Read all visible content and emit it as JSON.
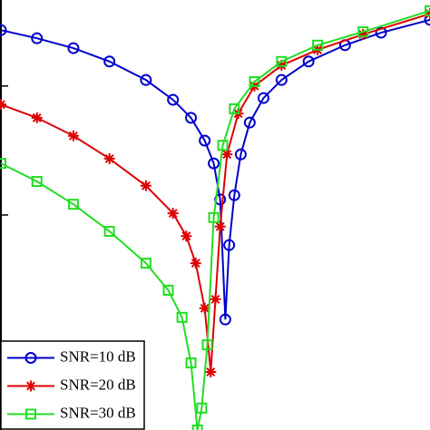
{
  "chart_data": {
    "type": "line",
    "xlim": [
      0,
      100
    ],
    "ylim": [
      0,
      100
    ],
    "yticks": [
      20,
      50,
      80
    ],
    "legend": "lower left",
    "series": [
      {
        "name": "SNR=10 dB",
        "color": "#0000cc",
        "marker": "circle",
        "x": [
          0,
          8.4,
          16.9,
          25.3,
          33.8,
          40.1,
          44.3,
          47.5,
          49.6,
          51.1,
          52.3,
          53.2,
          54.4,
          55.9,
          58.0,
          61.2,
          65.4,
          71.7,
          80.2,
          88.6,
          100
        ],
        "values": [
          93.0,
          91.1,
          88.8,
          85.7,
          81.4,
          76.8,
          72.6,
          67.3,
          62.0,
          53.6,
          25.7,
          43.0,
          54.6,
          64.1,
          71.5,
          77.2,
          81.4,
          85.7,
          89.5,
          92.4,
          95.4
        ]
      },
      {
        "name": "SNR=20 dB",
        "color": "#dd0000",
        "marker": "star",
        "x": [
          0,
          8.4,
          16.9,
          25.3,
          33.8,
          40.1,
          43.2,
          45.4,
          47.5,
          48.9,
          50.0,
          51.1,
          52.7,
          55.3,
          59.1,
          65.4,
          73.8,
          84.4,
          100
        ],
        "values": [
          75.7,
          72.6,
          68.4,
          63.1,
          56.8,
          50.4,
          45.1,
          38.8,
          28.3,
          13.5,
          30.4,
          47.3,
          64.1,
          73.6,
          80.0,
          84.8,
          88.4,
          92.0,
          96.8
        ]
      },
      {
        "name": "SNR=30 dB",
        "color": "#22dd22",
        "marker": "square",
        "x": [
          0,
          8.4,
          16.9,
          25.3,
          33.8,
          39.0,
          42.2,
          44.3,
          45.8,
          46.8,
          48.1,
          49.6,
          51.7,
          54.4,
          59.1,
          65.4,
          73.8,
          84.4,
          100
        ],
        "values": [
          62.0,
          57.8,
          52.5,
          46.2,
          38.8,
          32.5,
          26.2,
          15.6,
          0,
          5.1,
          19.8,
          49.4,
          66.2,
          74.7,
          81.0,
          85.7,
          89.5,
          92.6,
          97.5
        ]
      }
    ]
  }
}
